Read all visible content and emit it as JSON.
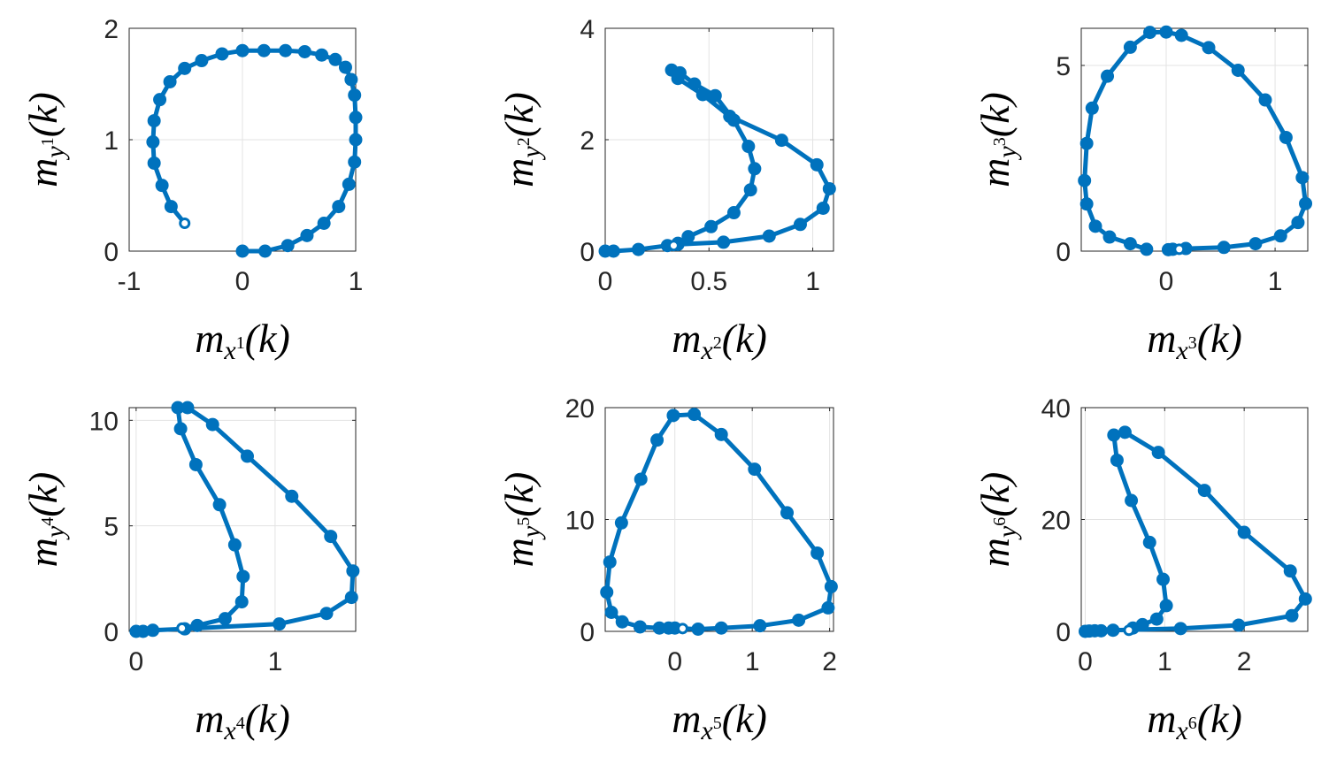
{
  "chart_data": [
    {
      "type": "line",
      "xlabel": "m_{x^1}(k)",
      "ylabel": "m_{y^1}(k)",
      "xlim": [
        -1,
        1
      ],
      "ylim": [
        0,
        2
      ],
      "xticks": [
        -1,
        0,
        1
      ],
      "xtick_labels": [
        "-1",
        "0",
        "1"
      ],
      "yticks": [
        0,
        1,
        2
      ],
      "ytick_labels": [
        "0",
        "1",
        "2"
      ],
      "grid": true,
      "color": "#0072BD",
      "series": [
        {
          "x": [
            0.0,
            0.2,
            0.4,
            0.57,
            0.72,
            0.85,
            0.94,
            0.99,
            1.0,
            1.0,
            0.99,
            0.96,
            0.91,
            0.82,
            0.7,
            0.55,
            0.38,
            0.19,
            0.0,
            -0.18,
            -0.36,
            -0.51,
            -0.64,
            -0.73,
            -0.78,
            -0.79,
            -0.78,
            -0.71,
            -0.63,
            -0.51
          ],
          "y": [
            0.0,
            0.0,
            0.05,
            0.14,
            0.25,
            0.4,
            0.6,
            0.8,
            1.0,
            1.2,
            1.4,
            1.54,
            1.65,
            1.72,
            1.76,
            1.79,
            1.8,
            1.8,
            1.8,
            1.77,
            1.71,
            1.64,
            1.52,
            1.36,
            1.17,
            0.98,
            0.79,
            0.59,
            0.4,
            0.25
          ]
        }
      ]
    },
    {
      "type": "line",
      "xlabel": "m_{x^2}(k)",
      "ylabel": "m_{y^2}(k)",
      "xlim": [
        0,
        1.1
      ],
      "ylim": [
        0,
        4
      ],
      "xticks": [
        0,
        0.5,
        1
      ],
      "xtick_labels": [
        "0",
        "0.5",
        "1"
      ],
      "yticks": [
        0,
        2,
        4
      ],
      "ytick_labels": [
        "0",
        "2",
        "4"
      ],
      "grid": true,
      "color": "#0072BD",
      "series": [
        {
          "x": [
            0.0,
            0.04,
            0.16,
            0.3,
            0.35,
            0.57,
            0.79,
            0.94,
            1.05,
            1.08,
            1.02,
            0.85,
            0.6,
            0.47,
            0.35,
            0.32,
            0.36,
            0.43,
            0.53,
            0.62,
            0.69,
            0.72,
            0.7,
            0.62,
            0.51,
            0.4,
            0.35,
            0.33
          ],
          "y": [
            0.0,
            0.0,
            0.03,
            0.1,
            0.12,
            0.16,
            0.27,
            0.48,
            0.77,
            1.12,
            1.55,
            1.99,
            2.42,
            2.81,
            3.1,
            3.25,
            3.2,
            3.0,
            2.79,
            2.35,
            1.88,
            1.48,
            1.1,
            0.69,
            0.44,
            0.26,
            0.14,
            0.1
          ]
        }
      ]
    },
    {
      "type": "line",
      "xlabel": "m_{x^3}(k)",
      "ylabel": "m_{y^3}(k)",
      "xlim": [
        -0.78,
        1.3
      ],
      "ylim": [
        0,
        6
      ],
      "xticks": [
        0,
        1
      ],
      "xtick_labels": [
        "0",
        "1"
      ],
      "yticks": [
        0,
        5
      ],
      "ytick_labels": [
        "0",
        "5"
      ],
      "grid": true,
      "color": "#0072BD",
      "series": [
        {
          "x": [
            -0.18,
            -0.33,
            -0.52,
            -0.65,
            -0.73,
            -0.75,
            -0.73,
            -0.68,
            -0.54,
            -0.33,
            -0.15,
            0.0,
            0.14,
            0.39,
            0.66,
            0.91,
            1.1,
            1.25,
            1.28,
            1.21,
            1.05,
            0.82,
            0.53,
            0.18,
            0.02,
            0.06,
            0.12
          ],
          "y": [
            0.05,
            0.2,
            0.38,
            0.67,
            1.27,
            1.9,
            2.9,
            3.85,
            4.71,
            5.49,
            5.89,
            5.9,
            5.81,
            5.48,
            4.87,
            4.07,
            3.06,
            1.98,
            1.28,
            0.77,
            0.41,
            0.2,
            0.1,
            0.07,
            0.04,
            0.05,
            0.05
          ]
        }
      ]
    },
    {
      "type": "line",
      "xlabel": "m_{x^4}(k)",
      "ylabel": "m_{y^4}(k)",
      "xlim": [
        -0.05,
        1.58
      ],
      "ylim": [
        0,
        10.6
      ],
      "xticks": [
        0,
        1
      ],
      "xtick_labels": [
        "0",
        "1"
      ],
      "yticks": [
        0,
        5,
        10
      ],
      "ytick_labels": [
        "0",
        "5",
        "10"
      ],
      "grid": true,
      "color": "#0072BD",
      "series": [
        {
          "x": [
            0.0,
            0.05,
            0.12,
            0.35,
            1.03,
            1.37,
            1.55,
            1.56,
            1.4,
            1.12,
            0.8,
            0.55,
            0.37,
            0.3,
            0.32,
            0.43,
            0.6,
            0.71,
            0.77,
            0.76,
            0.64,
            0.44,
            0.33
          ],
          "y": [
            0.0,
            0.0,
            0.05,
            0.12,
            0.35,
            0.85,
            1.61,
            2.86,
            4.5,
            6.4,
            8.3,
            9.8,
            10.6,
            10.6,
            9.6,
            7.9,
            6.0,
            4.1,
            2.6,
            1.4,
            0.6,
            0.28,
            0.15
          ]
        }
      ]
    },
    {
      "type": "line",
      "xlabel": "m_{x^5}(k)",
      "ylabel": "m_{y^5}(k)",
      "xlim": [
        -0.9,
        2.05
      ],
      "ylim": [
        0,
        20
      ],
      "xticks": [
        0,
        1,
        2
      ],
      "xtick_labels": [
        "0",
        "1",
        "2"
      ],
      "yticks": [
        0,
        10,
        20
      ],
      "ytick_labels": [
        "0",
        "10",
        "20"
      ],
      "grid": true,
      "color": "#0072BD",
      "series": [
        {
          "x": [
            0.0,
            -0.08,
            -0.2,
            -0.45,
            -0.68,
            -0.82,
            -0.88,
            -0.84,
            -0.69,
            -0.44,
            -0.23,
            -0.02,
            0.25,
            0.6,
            1.03,
            1.45,
            1.84,
            2.02,
            1.98,
            1.6,
            1.1,
            0.6,
            0.3,
            0.1
          ],
          "y": [
            0.3,
            0.3,
            0.3,
            0.4,
            0.85,
            1.7,
            3.5,
            6.2,
            9.7,
            13.6,
            17.1,
            19.3,
            19.4,
            17.6,
            14.5,
            10.6,
            7.0,
            4.0,
            2.1,
            1.0,
            0.5,
            0.3,
            0.2,
            0.25
          ]
        }
      ]
    },
    {
      "type": "line",
      "xlabel": "m_{x^6}(k)",
      "ylabel": "m_{y^6}(k)",
      "xlim": [
        -0.05,
        2.8
      ],
      "ylim": [
        0,
        40
      ],
      "xticks": [
        0,
        1,
        2
      ],
      "xtick_labels": [
        "0",
        "1",
        "2"
      ],
      "yticks": [
        0,
        20,
        40
      ],
      "ytick_labels": [
        "0",
        "20",
        "40"
      ],
      "grid": true,
      "color": "#0072BD",
      "series": [
        {
          "x": [
            0.0,
            0.05,
            0.12,
            0.2,
            0.35,
            1.2,
            1.93,
            2.6,
            2.77,
            2.58,
            2.0,
            1.5,
            0.92,
            0.5,
            0.36,
            0.4,
            0.58,
            0.81,
            0.98,
            1.02,
            0.9,
            0.72,
            0.6,
            0.55
          ],
          "y": [
            0.0,
            0.05,
            0.1,
            0.1,
            0.2,
            0.5,
            1.1,
            2.8,
            5.8,
            10.8,
            17.7,
            25.2,
            32.0,
            35.6,
            35.1,
            30.6,
            23.4,
            15.9,
            9.3,
            4.6,
            2.2,
            1.2,
            0.6,
            0.2
          ]
        }
      ]
    }
  ]
}
